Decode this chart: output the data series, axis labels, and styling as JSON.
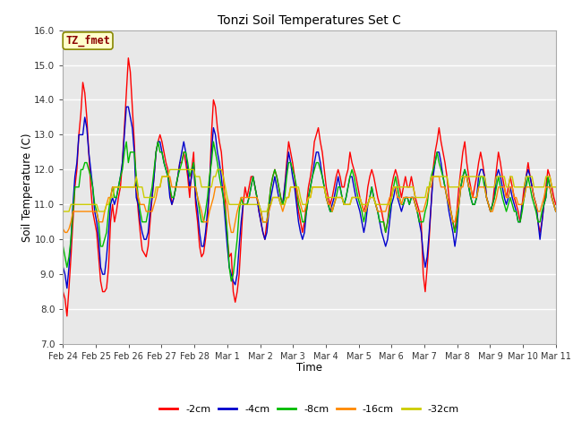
{
  "title": "Tonzi Soil Temperatures Set C",
  "xlabel": "Time",
  "ylabel": "Soil Temperature (C)",
  "ylim": [
    7.0,
    16.0
  ],
  "yticks": [
    7.0,
    8.0,
    9.0,
    10.0,
    11.0,
    12.0,
    13.0,
    14.0,
    15.0,
    16.0
  ],
  "xtick_labels": [
    "Feb 24",
    "Feb 25",
    "Feb 26",
    "Feb 27",
    "Feb 28",
    "Mar 1",
    "Mar 2",
    "Mar 3",
    "Mar 4",
    "Mar 5",
    "Mar 6",
    "Mar 7",
    "Mar 8",
    "Mar 9",
    "Mar 10",
    "Mar 11"
  ],
  "line_colors": [
    "#ff0000",
    "#0000cc",
    "#00bb00",
    "#ff8800",
    "#cccc00"
  ],
  "line_labels": [
    "-2cm",
    "-4cm",
    "-8cm",
    "-16cm",
    "-32cm"
  ],
  "background_color": "#ffffff",
  "plot_bg_color": "#e8e8e8",
  "t2cm": [
    8.5,
    8.3,
    7.8,
    8.6,
    9.5,
    10.5,
    11.5,
    12.0,
    13.0,
    13.6,
    14.5,
    14.2,
    13.5,
    12.5,
    11.5,
    10.8,
    10.5,
    10.2,
    9.5,
    8.8,
    8.5,
    8.5,
    8.6,
    9.2,
    10.5,
    11.0,
    10.5,
    10.8,
    11.2,
    11.5,
    12.2,
    13.2,
    14.2,
    15.2,
    14.8,
    13.8,
    12.8,
    11.5,
    10.8,
    10.2,
    9.7,
    9.6,
    9.5,
    9.8,
    10.5,
    11.2,
    11.8,
    12.5,
    12.8,
    13.0,
    12.8,
    12.5,
    12.2,
    12.0,
    11.5,
    11.0,
    11.2,
    11.5,
    11.8,
    12.2,
    12.2,
    12.5,
    12.2,
    11.8,
    11.2,
    12.0,
    12.5,
    11.0,
    10.5,
    9.8,
    9.5,
    9.6,
    10.0,
    10.5,
    11.5,
    13.0,
    14.0,
    13.8,
    13.2,
    12.8,
    12.5,
    11.8,
    11.0,
    10.0,
    9.5,
    9.6,
    8.5,
    8.2,
    8.5,
    9.0,
    10.0,
    11.0,
    11.5,
    11.2,
    11.5,
    11.8,
    11.8,
    11.5,
    11.2,
    10.8,
    10.5,
    10.2,
    10.0,
    10.5,
    11.0,
    11.5,
    11.8,
    12.0,
    11.8,
    11.5,
    11.2,
    11.0,
    11.5,
    12.2,
    12.8,
    12.5,
    12.2,
    11.8,
    11.2,
    10.8,
    10.5,
    10.2,
    10.5,
    11.0,
    11.5,
    11.8,
    12.2,
    12.8,
    13.0,
    13.2,
    12.8,
    12.5,
    12.0,
    11.5,
    11.2,
    11.0,
    11.2,
    11.5,
    11.8,
    12.0,
    11.8,
    11.5,
    11.5,
    11.8,
    12.0,
    12.5,
    12.2,
    12.0,
    11.8,
    11.5,
    11.2,
    11.0,
    10.8,
    11.0,
    11.5,
    11.8,
    12.0,
    11.8,
    11.5,
    11.2,
    11.0,
    10.8,
    10.5,
    10.2,
    10.5,
    11.0,
    11.5,
    11.8,
    12.0,
    11.8,
    11.5,
    11.2,
    11.5,
    11.8,
    11.5,
    11.5,
    11.8,
    11.5,
    11.2,
    11.0,
    10.8,
    10.5,
    9.0,
    8.5,
    9.2,
    10.0,
    11.0,
    12.0,
    12.5,
    12.8,
    13.2,
    12.8,
    12.5,
    12.2,
    11.8,
    11.2,
    10.8,
    10.5,
    10.2,
    10.8,
    11.5,
    12.0,
    12.5,
    12.8,
    12.2,
    11.8,
    11.5,
    11.2,
    11.5,
    11.8,
    12.2,
    12.5,
    12.2,
    11.8,
    11.2,
    11.0,
    10.8,
    11.0,
    11.5,
    12.0,
    12.5,
    12.2,
    11.8,
    11.5,
    11.2,
    11.5,
    11.8,
    11.5,
    11.2,
    11.0,
    10.8,
    10.5,
    11.0,
    11.5,
    11.8,
    12.2,
    11.8,
    11.5,
    11.2,
    11.0,
    10.5,
    10.2,
    10.5,
    11.0,
    11.5,
    12.0,
    11.8,
    11.5,
    11.2,
    11.0
  ],
  "t4cm": [
    9.2,
    9.0,
    8.6,
    9.2,
    10.0,
    11.0,
    11.8,
    12.2,
    13.0,
    13.0,
    13.0,
    13.5,
    13.2,
    12.5,
    12.0,
    11.5,
    10.8,
    10.5,
    10.0,
    9.2,
    9.0,
    9.0,
    9.5,
    10.2,
    11.0,
    11.2,
    11.0,
    11.2,
    11.5,
    11.8,
    12.2,
    13.0,
    13.8,
    13.8,
    13.5,
    13.2,
    12.5,
    11.2,
    11.0,
    10.5,
    10.2,
    10.0,
    10.0,
    10.2,
    10.8,
    11.2,
    11.8,
    12.5,
    12.8,
    12.8,
    12.5,
    12.2,
    12.0,
    11.8,
    11.2,
    11.0,
    11.2,
    11.5,
    11.8,
    12.2,
    12.5,
    12.8,
    12.5,
    12.0,
    11.5,
    11.8,
    12.2,
    11.2,
    10.8,
    10.2,
    9.8,
    9.8,
    10.2,
    10.8,
    11.5,
    12.5,
    13.2,
    13.0,
    12.5,
    12.2,
    11.8,
    11.2,
    10.5,
    9.8,
    9.2,
    9.0,
    8.8,
    8.7,
    9.0,
    9.8,
    10.5,
    11.0,
    11.0,
    11.0,
    11.2,
    11.5,
    11.8,
    11.5,
    11.2,
    10.8,
    10.5,
    10.2,
    10.0,
    10.2,
    10.8,
    11.2,
    11.5,
    11.8,
    11.5,
    11.2,
    11.0,
    11.0,
    11.5,
    12.0,
    12.5,
    12.2,
    11.8,
    11.5,
    11.0,
    10.5,
    10.2,
    10.0,
    10.2,
    10.8,
    11.2,
    11.5,
    11.8,
    12.2,
    12.5,
    12.5,
    12.2,
    11.8,
    11.5,
    11.2,
    11.0,
    10.8,
    11.0,
    11.2,
    11.5,
    11.8,
    11.5,
    11.2,
    11.0,
    11.2,
    11.5,
    11.8,
    11.8,
    11.5,
    11.2,
    11.0,
    10.8,
    10.5,
    10.2,
    10.5,
    11.0,
    11.2,
    11.5,
    11.2,
    11.0,
    10.8,
    10.5,
    10.2,
    10.0,
    9.8,
    10.0,
    10.5,
    11.0,
    11.2,
    11.5,
    11.2,
    11.0,
    10.8,
    11.0,
    11.2,
    11.2,
    11.0,
    11.2,
    11.2,
    11.0,
    10.8,
    10.5,
    10.2,
    9.6,
    9.2,
    9.5,
    10.2,
    11.0,
    11.8,
    12.2,
    12.5,
    12.5,
    12.2,
    11.8,
    11.5,
    11.2,
    10.8,
    10.5,
    10.2,
    9.8,
    10.2,
    11.0,
    11.5,
    11.8,
    12.0,
    11.8,
    11.5,
    11.2,
    11.0,
    11.0,
    11.2,
    11.8,
    12.0,
    12.0,
    11.8,
    11.2,
    11.0,
    10.8,
    11.0,
    11.2,
    11.8,
    12.0,
    11.8,
    11.5,
    11.2,
    11.0,
    11.2,
    11.5,
    11.2,
    11.0,
    10.8,
    10.5,
    10.5,
    11.0,
    11.2,
    11.8,
    12.0,
    11.8,
    11.5,
    11.2,
    11.0,
    10.5,
    10.0,
    10.5,
    11.0,
    11.2,
    11.8,
    11.5,
    11.2,
    11.0,
    10.8
  ],
  "t8cm": [
    9.8,
    9.5,
    9.2,
    9.5,
    10.0,
    10.8,
    11.5,
    11.5,
    11.5,
    12.0,
    12.0,
    12.2,
    12.2,
    12.0,
    11.8,
    11.5,
    11.0,
    10.8,
    10.5,
    9.8,
    9.8,
    10.0,
    10.2,
    10.8,
    11.2,
    11.5,
    11.2,
    11.2,
    11.5,
    11.8,
    12.0,
    12.5,
    12.8,
    12.2,
    12.5,
    12.5,
    12.5,
    11.8,
    11.2,
    10.8,
    10.5,
    10.5,
    10.5,
    10.8,
    11.2,
    11.5,
    12.0,
    12.5,
    12.8,
    12.5,
    12.5,
    12.2,
    12.0,
    11.8,
    11.5,
    11.2,
    11.2,
    11.5,
    11.8,
    12.0,
    12.2,
    12.5,
    12.5,
    12.2,
    11.8,
    12.0,
    12.2,
    11.5,
    11.2,
    10.8,
    10.5,
    10.5,
    10.8,
    11.2,
    11.8,
    12.2,
    12.8,
    12.5,
    12.2,
    11.8,
    11.5,
    11.2,
    10.8,
    10.2,
    9.2,
    8.8,
    9.0,
    9.5,
    10.0,
    10.8,
    11.2,
    11.0,
    11.0,
    11.0,
    11.2,
    11.5,
    11.8,
    11.5,
    11.2,
    11.0,
    10.8,
    10.5,
    10.5,
    10.5,
    11.0,
    11.5,
    11.8,
    12.0,
    11.8,
    11.5,
    11.2,
    11.0,
    11.2,
    11.8,
    12.2,
    12.2,
    12.0,
    11.8,
    11.5,
    11.0,
    10.8,
    10.5,
    10.5,
    10.8,
    11.2,
    11.5,
    11.8,
    12.0,
    12.2,
    12.2,
    12.0,
    11.8,
    11.5,
    11.2,
    11.0,
    10.8,
    10.8,
    11.0,
    11.2,
    11.5,
    11.5,
    11.2,
    11.0,
    11.2,
    11.5,
    11.8,
    12.0,
    11.8,
    11.5,
    11.2,
    11.0,
    10.8,
    10.5,
    10.8,
    11.0,
    11.2,
    11.5,
    11.2,
    11.0,
    10.8,
    10.5,
    10.5,
    10.5,
    10.2,
    10.5,
    10.8,
    11.2,
    11.5,
    11.8,
    11.5,
    11.2,
    11.0,
    11.0,
    11.2,
    11.2,
    11.0,
    11.2,
    11.2,
    11.0,
    10.8,
    10.5,
    10.5,
    10.5,
    10.8,
    11.0,
    11.5,
    11.8,
    12.0,
    12.2,
    12.5,
    12.2,
    12.0,
    11.8,
    11.5,
    11.2,
    11.0,
    10.8,
    10.5,
    10.2,
    10.5,
    11.0,
    11.5,
    11.8,
    12.0,
    11.8,
    11.5,
    11.2,
    11.0,
    11.0,
    11.2,
    11.5,
    11.8,
    11.8,
    11.5,
    11.2,
    11.0,
    10.8,
    11.0,
    11.2,
    11.5,
    11.8,
    11.5,
    11.2,
    11.0,
    10.8,
    11.0,
    11.2,
    11.0,
    10.8,
    10.8,
    10.5,
    10.5,
    10.8,
    11.2,
    11.5,
    11.8,
    11.5,
    11.2,
    11.0,
    10.8,
    10.5,
    10.5,
    10.8,
    11.0,
    11.2,
    11.8,
    11.5,
    11.2,
    11.0,
    10.8
  ],
  "t16cm": [
    10.3,
    10.2,
    10.2,
    10.3,
    10.5,
    10.8,
    10.8,
    10.8,
    10.8,
    10.8,
    10.8,
    10.8,
    10.8,
    10.8,
    10.8,
    10.8,
    10.8,
    10.8,
    10.5,
    10.5,
    10.5,
    10.8,
    11.0,
    11.2,
    11.2,
    11.5,
    11.5,
    11.5,
    11.5,
    11.5,
    11.5,
    11.5,
    11.5,
    11.5,
    11.5,
    11.5,
    11.5,
    11.5,
    11.2,
    11.0,
    11.0,
    11.0,
    10.8,
    10.8,
    10.8,
    10.8,
    11.0,
    11.2,
    11.5,
    11.5,
    11.8,
    11.8,
    11.8,
    11.8,
    11.8,
    11.5,
    11.5,
    11.5,
    11.5,
    11.5,
    11.5,
    11.5,
    11.5,
    11.5,
    11.5,
    11.5,
    11.5,
    11.5,
    11.2,
    11.0,
    10.8,
    10.5,
    10.5,
    10.5,
    10.8,
    11.0,
    11.2,
    11.5,
    11.5,
    11.5,
    11.5,
    11.5,
    11.2,
    11.0,
    10.5,
    10.2,
    10.2,
    10.5,
    10.8,
    11.0,
    11.2,
    11.2,
    11.2,
    11.2,
    11.2,
    11.2,
    11.2,
    11.2,
    11.2,
    11.0,
    10.8,
    10.5,
    10.5,
    10.5,
    10.8,
    11.0,
    11.2,
    11.2,
    11.2,
    11.2,
    11.0,
    10.8,
    11.0,
    11.2,
    11.2,
    11.5,
    11.5,
    11.5,
    11.5,
    11.2,
    11.0,
    10.8,
    10.8,
    11.0,
    11.2,
    11.2,
    11.5,
    11.5,
    11.5,
    11.5,
    11.5,
    11.5,
    11.5,
    11.2,
    11.0,
    11.0,
    10.8,
    11.0,
    11.2,
    11.2,
    11.2,
    11.2,
    11.0,
    11.0,
    11.0,
    11.0,
    11.2,
    11.2,
    11.2,
    11.2,
    11.2,
    11.0,
    10.8,
    10.8,
    11.0,
    11.2,
    11.2,
    11.2,
    11.0,
    10.8,
    10.8,
    10.8,
    10.8,
    10.8,
    11.0,
    11.2,
    11.2,
    11.5,
    11.5,
    11.2,
    11.2,
    11.0,
    11.2,
    11.2,
    11.2,
    11.2,
    11.2,
    11.2,
    11.0,
    10.8,
    10.8,
    10.8,
    10.8,
    11.0,
    11.2,
    11.5,
    11.5,
    11.8,
    11.8,
    11.8,
    11.8,
    11.5,
    11.5,
    11.5,
    11.2,
    11.0,
    10.8,
    10.5,
    10.5,
    10.8,
    11.0,
    11.5,
    11.5,
    11.8,
    11.8,
    11.5,
    11.5,
    11.2,
    11.2,
    11.2,
    11.5,
    11.5,
    11.5,
    11.5,
    11.2,
    11.0,
    10.8,
    10.8,
    11.0,
    11.2,
    11.5,
    11.5,
    11.5,
    11.5,
    11.2,
    11.2,
    11.5,
    11.5,
    11.2,
    11.2,
    11.0,
    11.0,
    11.0,
    11.2,
    11.5,
    11.5,
    11.5,
    11.5,
    11.2,
    11.0,
    10.8,
    10.8,
    11.0,
    11.2,
    11.5,
    11.5,
    11.5,
    11.2,
    11.0,
    10.8
  ],
  "t32cm": [
    10.8,
    10.8,
    10.8,
    10.8,
    11.0,
    11.0,
    11.0,
    11.0,
    11.0,
    11.0,
    11.0,
    11.0,
    11.0,
    11.0,
    11.0,
    11.0,
    11.0,
    11.0,
    10.8,
    10.8,
    10.8,
    10.8,
    11.0,
    11.0,
    11.2,
    11.2,
    11.5,
    11.5,
    11.5,
    11.5,
    11.5,
    11.5,
    11.5,
    11.5,
    11.5,
    11.5,
    11.5,
    11.8,
    11.5,
    11.5,
    11.5,
    11.2,
    11.2,
    11.2,
    11.2,
    11.2,
    11.2,
    11.5,
    11.5,
    11.5,
    11.8,
    11.8,
    11.8,
    11.8,
    12.0,
    12.0,
    12.0,
    12.0,
    12.0,
    12.0,
    12.0,
    12.0,
    12.0,
    12.0,
    12.0,
    12.0,
    12.0,
    11.8,
    11.8,
    11.8,
    11.5,
    11.5,
    11.5,
    11.5,
    11.5,
    11.5,
    11.8,
    11.8,
    12.0,
    12.0,
    12.0,
    11.8,
    11.5,
    11.2,
    11.0,
    11.0,
    11.0,
    11.0,
    11.0,
    11.0,
    11.0,
    11.0,
    11.0,
    11.0,
    11.0,
    11.0,
    11.0,
    11.0,
    11.0,
    11.0,
    10.8,
    10.8,
    10.8,
    10.8,
    11.0,
    11.0,
    11.2,
    11.2,
    11.2,
    11.2,
    11.0,
    11.0,
    11.0,
    11.2,
    11.2,
    11.5,
    11.5,
    11.5,
    11.5,
    11.5,
    11.2,
    11.0,
    11.0,
    11.0,
    11.2,
    11.2,
    11.5,
    11.5,
    11.5,
    11.5,
    11.5,
    11.5,
    11.5,
    11.2,
    11.2,
    11.2,
    11.2,
    11.2,
    11.2,
    11.2,
    11.2,
    11.2,
    11.0,
    11.0,
    11.0,
    11.0,
    11.2,
    11.2,
    11.2,
    11.2,
    11.2,
    11.0,
    11.0,
    11.0,
    11.0,
    11.2,
    11.2,
    11.2,
    11.0,
    11.0,
    11.0,
    11.0,
    11.0,
    11.0,
    11.0,
    11.0,
    11.2,
    11.5,
    11.5,
    11.5,
    11.5,
    11.5,
    11.5,
    11.5,
    11.5,
    11.5,
    11.5,
    11.5,
    11.2,
    11.2,
    11.2,
    11.2,
    11.2,
    11.2,
    11.5,
    11.5,
    11.8,
    11.8,
    11.8,
    11.8,
    11.8,
    11.8,
    11.8,
    11.8,
    11.8,
    11.5,
    11.5,
    11.5,
    11.5,
    11.5,
    11.5,
    11.8,
    11.8,
    11.8,
    11.8,
    11.8,
    11.8,
    11.8,
    11.8,
    11.8,
    11.8,
    11.8,
    11.8,
    11.8,
    11.5,
    11.5,
    11.5,
    11.5,
    11.5,
    11.8,
    11.8,
    11.8,
    11.8,
    11.8,
    11.5,
    11.5,
    11.8,
    11.8,
    11.5,
    11.5,
    11.5,
    11.5,
    11.5,
    11.5,
    11.8,
    11.8,
    11.8,
    11.8,
    11.5,
    11.5,
    11.5,
    11.5,
    11.5,
    11.5,
    11.8,
    11.8,
    11.8,
    11.5,
    11.5,
    11.5
  ]
}
